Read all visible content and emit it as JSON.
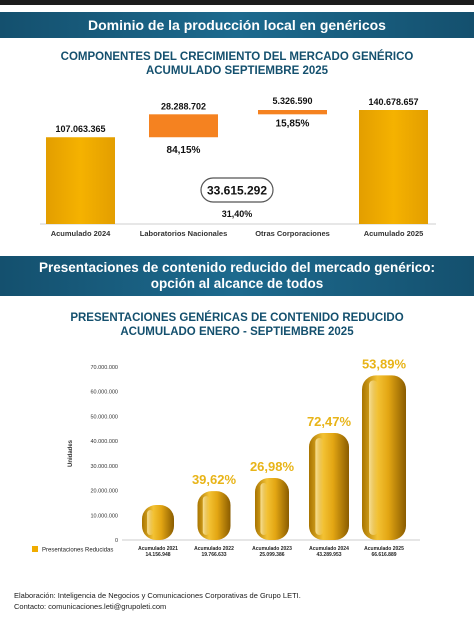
{
  "section1": {
    "banner": "Dominio de la producción local en genéricos",
    "title_line1": "COMPONENTES DEL CRECIMIENTO DEL MERCADO GENÉRICO",
    "title_line2": "ACUMULADO SEPTIEMBRE  2025"
  },
  "section2": {
    "banner_line1": "Presentaciones de contenido reducido del mercado genérico:",
    "banner_line2": "opción al alcance de todos",
    "title_line1": "PRESENTACIONES GENÉRICAS DE CONTENIDO REDUCIDO",
    "title_line2": "ACUMULADO ENERO - SEPTIEMBRE 2025"
  },
  "footer": {
    "line1": "Elaboración: Inteligencia de Negocios y Comunicaciones Corporativas de Grupo LETI.",
    "line2": "Contacto: comunicaciones.leti@grupoleti.com"
  },
  "colors": {
    "banner": "#1d6a8e",
    "title": "#14506e",
    "gold": "#f0ac00",
    "orange": "#f58220",
    "pct_text": "#e8b418"
  },
  "chart_data": [
    {
      "type": "bar",
      "subtype": "waterfall",
      "categories": [
        "Acumulado 2024",
        "Laboratorios Nacionales",
        "Otras Corporaciones",
        "Acumulado 2025"
      ],
      "values": [
        107063365,
        28288702,
        5326590,
        140678657
      ],
      "value_labels": [
        "107.063.365",
        "28.288.702",
        "5.326.590",
        "140.678.657"
      ],
      "share_labels": [
        "",
        "84,15%",
        "15,85%",
        ""
      ],
      "total_change": {
        "value": 33615292,
        "label": "33.615.292",
        "percent_label": "31,40%"
      },
      "ylim": [
        0,
        140678657
      ]
    },
    {
      "type": "bar",
      "categories": [
        "Acumulado 2021",
        "Acumulado 2022",
        "Acumulado 2023",
        "Acumulado 2024",
        "Acumulado 2025"
      ],
      "category_values": [
        "14.156.948",
        "19.766.633",
        "25.099.386",
        "43.289.953",
        "66.616.889"
      ],
      "series": [
        {
          "name": "Presentaciones Reducidas",
          "values": [
            14156948,
            19766633,
            25099386,
            43289953,
            66616889
          ]
        }
      ],
      "growth_labels": [
        "",
        "39,62%",
        "26,98%",
        "72,47%",
        "53,89%"
      ],
      "ylabel": "Unidades",
      "yticks": [
        0,
        10000000,
        20000000,
        30000000,
        40000000,
        50000000,
        60000000,
        70000000
      ],
      "ytick_labels": [
        "0",
        "10.000.000",
        "20.000.000",
        "30.000.000",
        "40.000.000",
        "50.000.000",
        "60.000.000",
        "70.000.000"
      ],
      "ylim": [
        0,
        70000000
      ],
      "legend": "bottom-left"
    }
  ]
}
